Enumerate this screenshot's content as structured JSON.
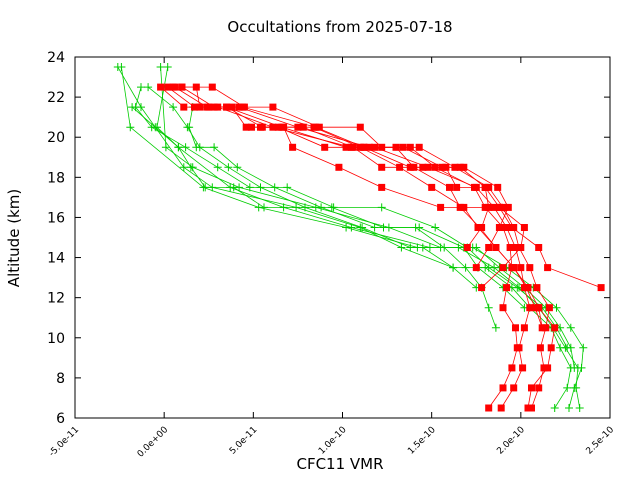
{
  "chart_data": {
    "type": "line",
    "title": "Occultations from 2025-07-18",
    "xlabel": "CFC11 VMR",
    "ylabel": "Altitude (km)",
    "xlim": [
      -5e-11,
      2.5e-10
    ],
    "ylim": [
      6,
      24
    ],
    "xticks": [
      "-5.0e-11",
      "0.0e+00",
      "5.0e-11",
      "1.0e-10",
      "1.5e-10",
      "2.0e-10",
      "2.5e-10"
    ],
    "xtick_values": [
      -5e-11,
      0,
      5e-11,
      1e-10,
      1.5e-10,
      2e-10,
      2.5e-10
    ],
    "yticks": [
      "6",
      "8",
      "10",
      "12",
      "14",
      "16",
      "18",
      "20",
      "22",
      "24"
    ],
    "ytick_values": [
      6,
      8,
      10,
      12,
      14,
      16,
      18,
      20,
      22,
      24
    ],
    "grid": false,
    "legend": "none",
    "colors": {
      "red": "#ff0000",
      "green": "#00cc00",
      "axis": "#000000"
    },
    "series": [
      {
        "color": "red",
        "marker": "square",
        "x": [
          1.82e-10,
          1.9e-10,
          1.95e-10,
          1.98e-10,
          1.97e-10,
          1.9e-10,
          1.92e-10,
          1.95e-10,
          1.94e-10,
          1.9e-10,
          1.8e-10,
          1.74e-10,
          1.52e-10,
          1.38e-10,
          1.15e-10,
          7.5e-11,
          4.2e-11,
          1.1e-11,
          -2e-12
        ],
        "y": [
          6.5,
          7.5,
          8.5,
          9.5,
          10.5,
          11.5,
          12.5,
          13.5,
          14.5,
          15.5,
          16.5,
          17.5,
          18.5,
          19.5,
          19.5,
          20.5,
          21.5,
          21.5,
          22.5
        ]
      },
      {
        "color": "red",
        "marker": "square",
        "x": [
          1.89e-10,
          1.96e-10,
          2.01e-10,
          1.99e-10,
          2.02e-10,
          2.05e-10,
          2.02e-10,
          2e-10,
          1.97e-10,
          1.92e-10,
          1.85e-10,
          1.75e-10,
          1.48e-10,
          1.18e-10,
          1.02e-10,
          6.6e-11,
          3.5e-11,
          1.7e-11,
          2e-12
        ],
        "y": [
          6.5,
          7.5,
          8.5,
          9.5,
          10.5,
          11.5,
          12.5,
          13.5,
          14.5,
          15.5,
          16.5,
          17.5,
          18.5,
          19.5,
          19.5,
          20.5,
          21.5,
          21.5,
          22.5
        ]
      },
      {
        "color": "red",
        "marker": "square",
        "x": [
          2.06e-10,
          2.1e-10,
          2.13e-10,
          2.11e-10,
          2.14e-10,
          2.16e-10,
          2.09e-10,
          2.05e-10,
          1.99e-10,
          1.96e-10,
          1.9e-10,
          1.82e-10,
          1.63e-10,
          1.43e-10,
          1.12e-10,
          8.5e-11,
          4.4e-11,
          2.4e-11,
          6e-12
        ],
        "y": [
          6.5,
          7.5,
          8.5,
          9.5,
          10.5,
          11.5,
          12.5,
          13.5,
          14.5,
          15.5,
          16.5,
          17.5,
          18.5,
          19.5,
          19.5,
          20.5,
          21.5,
          21.5,
          22.5
        ]
      },
      {
        "color": "red",
        "marker": "square",
        "x": [
          2.04e-10,
          2.06e-10,
          2.15e-10,
          2.17e-10,
          2.19e-10,
          2.1e-10,
          2.04e-10,
          1.96e-10,
          1.86e-10,
          1.77e-10,
          1.66e-10,
          1.6e-10,
          1.4e-10,
          1.3e-10,
          1.05e-10,
          6.1e-11,
          3e-11,
          2.8e-11,
          1e-11
        ],
        "y": [
          6.5,
          7.5,
          8.5,
          9.5,
          10.5,
          11.5,
          12.5,
          13.5,
          14.5,
          15.5,
          16.5,
          17.5,
          18.5,
          19.5,
          19.5,
          20.5,
          21.5,
          21.5,
          22.5
        ]
      },
      {
        "color": "red",
        "marker": "square",
        "x": [
          2.45e-10,
          2.15e-10,
          2.1e-10,
          1.95e-10,
          1.88e-10,
          1.8e-10,
          1.66e-10,
          1.56e-10,
          1.34e-10,
          1.22e-10,
          1.1e-10,
          8.7e-11,
          6.1e-11,
          4.5e-11,
          2.7e-11,
          1e-11
        ],
        "y": [
          12.5,
          13.5,
          14.5,
          15.5,
          16.5,
          17.5,
          18.5,
          18.5,
          19.5,
          19.5,
          20.5,
          20.5,
          21.5,
          21.5,
          22.5,
          22.5
        ]
      },
      {
        "color": "red",
        "marker": "square",
        "x": [
          2.1e-10,
          2.12e-10,
          2.08e-10,
          2.03e-10,
          1.96e-10,
          1.86e-10,
          1.76e-10,
          1.68e-10,
          1.5e-10,
          1.32e-10,
          1.1e-10,
          8.4e-11,
          5.5e-11,
          3.5e-11,
          2e-11,
          1.8e-11,
          5e-12
        ],
        "y": [
          11.5,
          10.5,
          11.5,
          12.5,
          13.5,
          14.5,
          15.5,
          16.5,
          17.5,
          18.5,
          19.5,
          20.5,
          20.5,
          21.5,
          21.5,
          22.5,
          22.5
        ]
      },
      {
        "color": "red",
        "marker": "square",
        "x": [
          1.75e-10,
          1.82e-10,
          1.88e-10,
          1.93e-10,
          1.87e-10,
          1.68e-10,
          1.45e-10,
          1.22e-10,
          1.06e-10,
          7.8e-11,
          4.6e-11,
          3.8e-11,
          2.5e-11
        ],
        "y": [
          13.5,
          14.5,
          15.5,
          16.5,
          17.5,
          18.5,
          18.5,
          18.5,
          19.5,
          20.5,
          20.5,
          21.5,
          21.5
        ]
      },
      {
        "color": "red",
        "marker": "square",
        "x": [
          1.7e-10,
          1.78e-10,
          1.82e-10,
          1.8e-10,
          1.64e-10,
          1.58e-10,
          1.38e-10,
          1.12e-10,
          9e-11,
          6.4e-11,
          4.9e-11
        ],
        "y": [
          14.5,
          15.5,
          16.5,
          17.5,
          17.5,
          18.5,
          18.5,
          19.5,
          19.5,
          20.5,
          20.5
        ]
      },
      {
        "color": "red",
        "marker": "square",
        "x": [
          1.78e-10,
          1.9e-10,
          2e-10,
          2.02e-10,
          1.88e-10,
          1.55e-10,
          1.22e-10,
          9.8e-11,
          7.2e-11,
          6.7e-11,
          5.4e-11
        ],
        "y": [
          12.5,
          13.5,
          14.5,
          15.5,
          16.5,
          16.5,
          17.5,
          18.5,
          19.5,
          20.5,
          20.5
        ]
      },
      {
        "color": "green",
        "marker": "plus",
        "x": [
          2.33e-10,
          2.31e-10,
          2.32e-10,
          2.25e-10,
          2.18e-10,
          2.1e-10,
          1.99e-10,
          1.85e-10,
          1.65e-10,
          1.42e-10,
          1.02e-10,
          5.3e-11,
          2.2e-11,
          -1.9e-11,
          -2.4e-11
        ],
        "y": [
          6.5,
          7.5,
          8.5,
          9.5,
          10.5,
          11.5,
          12.5,
          13.5,
          14.5,
          14.5,
          15.5,
          16.5,
          17.5,
          20.5,
          23.5
        ]
      },
      {
        "color": "green",
        "marker": "plus",
        "x": [
          2.27e-10,
          2.3e-10,
          2.34e-10,
          2.35e-10,
          2.28e-10,
          2.2e-10,
          2.07e-10,
          1.92e-10,
          1.73e-10,
          1.49e-10,
          1.05e-10,
          6.7e-11,
          3.7e-11,
          8e-12,
          -1.8e-11
        ],
        "y": [
          6.5,
          7.5,
          8.5,
          9.5,
          10.5,
          11.5,
          12.5,
          13.5,
          14.5,
          14.5,
          15.5,
          16.5,
          17.5,
          19.5,
          21.5
        ]
      },
      {
        "color": "green",
        "marker": "plus",
        "x": [
          2.19e-10,
          2.26e-10,
          2.28e-10,
          2.22e-10,
          2.17e-10,
          2.05e-10,
          1.95e-10,
          1.8e-10,
          1.62e-10,
          1.33e-10,
          1.1e-10,
          7.4e-11,
          2.7e-11,
          1.1e-11,
          -5e-12,
          -1.3e-11,
          -2.6e-11
        ],
        "y": [
          6.5,
          7.5,
          8.5,
          9.5,
          10.5,
          11.5,
          12.5,
          13.5,
          13.5,
          14.5,
          15.5,
          16.5,
          17.5,
          18.5,
          20.5,
          21.5,
          23.5
        ]
      },
      {
        "color": "green",
        "marker": "plus",
        "x": [
          2.3e-10,
          2.28e-10,
          2.22e-10,
          2.14e-10,
          2.02e-10,
          1.88e-10,
          1.75e-10,
          1.55e-10,
          1.26e-10,
          8.5e-11,
          4.2e-11,
          1.6e-11,
          1e-12,
          -2e-12
        ],
        "y": [
          8.5,
          9.5,
          10.5,
          11.5,
          12.5,
          13.5,
          14.5,
          14.5,
          15.5,
          16.5,
          17.5,
          18.5,
          19.5,
          23.5
        ]
      },
      {
        "color": "green",
        "marker": "plus",
        "x": [
          2.26e-10,
          2.2e-10,
          2.12e-10,
          1.98e-10,
          1.82e-10,
          1.7e-10,
          1.52e-10,
          1.22e-10,
          9.5e-11,
          6.9e-11,
          4.8e-11,
          3e-11,
          1.2e-11,
          -7e-12,
          -1.6e-11,
          -1.3e-11
        ],
        "y": [
          9.5,
          10.5,
          11.5,
          12.5,
          13.5,
          14.5,
          15.5,
          16.5,
          16.5,
          17.5,
          17.5,
          18.5,
          19.5,
          20.5,
          21.5,
          22.5
        ]
      },
      {
        "color": "green",
        "marker": "plus",
        "x": [
          1.86e-10,
          1.82e-10,
          1.78e-10,
          1.69e-10,
          1.57e-10,
          1.41e-10,
          1.23e-10,
          9.4e-11,
          5.6e-11,
          3.9e-11,
          2.3e-11,
          1.5e-11,
          8e-12,
          -4e-12,
          2e-12
        ],
        "y": [
          10.5,
          11.5,
          12.5,
          13.5,
          14.5,
          15.5,
          15.5,
          16.5,
          16.5,
          17.5,
          17.5,
          18.5,
          19.5,
          20.5,
          23.5
        ]
      },
      {
        "color": "green",
        "marker": "plus",
        "x": [
          1.75e-10,
          1.62e-10,
          1.45e-10,
          1.38e-10,
          1.11e-10,
          7.9e-11,
          5.4e-11,
          3.6e-11,
          2e-11,
          1.3e-11,
          5e-12,
          -9e-12
        ],
        "y": [
          12.5,
          13.5,
          14.5,
          14.5,
          15.5,
          16.5,
          17.5,
          18.5,
          19.5,
          20.5,
          21.5,
          22.5
        ]
      },
      {
        "color": "green",
        "marker": "plus",
        "x": [
          2.02e-10,
          1.9e-10,
          1.76e-10,
          1.68e-10,
          1.43e-10,
          1.18e-10,
          8.8e-11,
          6.2e-11,
          4.1e-11,
          2.8e-11,
          1.8e-11,
          1.4e-11,
          1.6e-11
        ],
        "y": [
          11.5,
          12.5,
          13.5,
          14.5,
          15.5,
          15.5,
          16.5,
          17.5,
          18.5,
          19.5,
          19.5,
          20.5,
          21.5
        ]
      }
    ]
  }
}
